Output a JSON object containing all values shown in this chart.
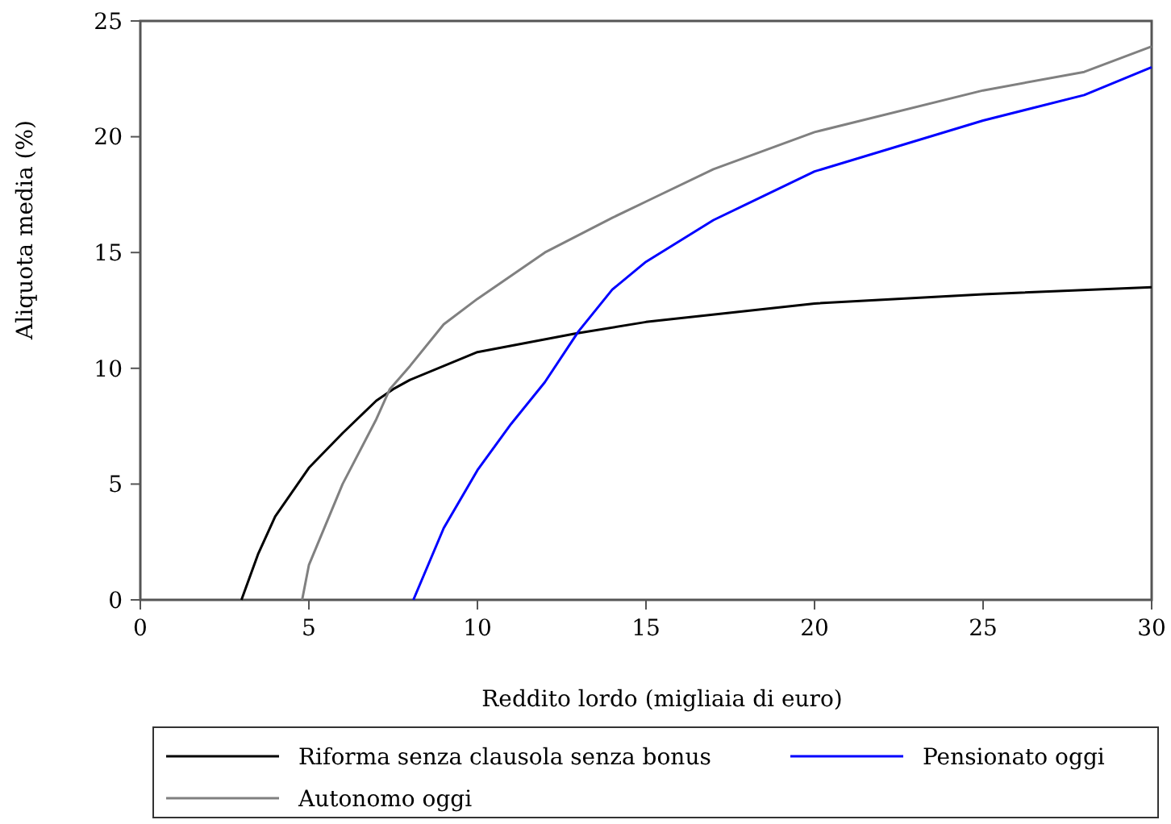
{
  "chart_data": {
    "type": "line",
    "xlabel": "Reddito lordo (migliaia di euro)",
    "ylabel": "Aliquota media (%)",
    "xlim": [
      0,
      30
    ],
    "xticks": [
      0,
      5,
      10,
      15,
      20,
      25,
      30
    ],
    "ylim": [
      0,
      25
    ],
    "yticks": [
      0,
      5,
      10,
      15,
      20,
      25
    ],
    "grid": false,
    "legend": "bottom",
    "marker": "none",
    "line_style": "solid",
    "series": [
      {
        "name": "Riforma senza clausola senza bonus",
        "color": "#000000",
        "x": [
          3,
          3.5,
          4,
          5,
          6,
          7,
          7.5,
          8,
          10,
          12.9,
          15,
          20,
          25,
          30
        ],
        "values": [
          0,
          2,
          3.6,
          5.7,
          7.2,
          8.6,
          9.1,
          9.5,
          10.7,
          11.5,
          12,
          12.8,
          13.2,
          13.5
        ]
      },
      {
        "name": "Pensionato oggi",
        "color": "#0000ff",
        "x": [
          8.1,
          9,
          10,
          11,
          12,
          13,
          14,
          15,
          17,
          20,
          25,
          28,
          30
        ],
        "values": [
          0,
          3.1,
          5.6,
          7.6,
          9.4,
          11.6,
          13.4,
          14.6,
          16.4,
          18.5,
          20.7,
          21.8,
          23
        ]
      },
      {
        "name": "Autonomo oggi",
        "color": "#808080",
        "x": [
          4.8,
          5,
          6,
          7,
          7.4,
          8,
          9,
          10,
          12,
          14,
          15,
          17,
          20,
          25,
          28,
          30
        ],
        "values": [
          0,
          1.5,
          5,
          7.8,
          9.1,
          10.1,
          11.9,
          13,
          15,
          16.5,
          17.2,
          18.6,
          20.2,
          22,
          22.8,
          23.9
        ]
      }
    ]
  }
}
